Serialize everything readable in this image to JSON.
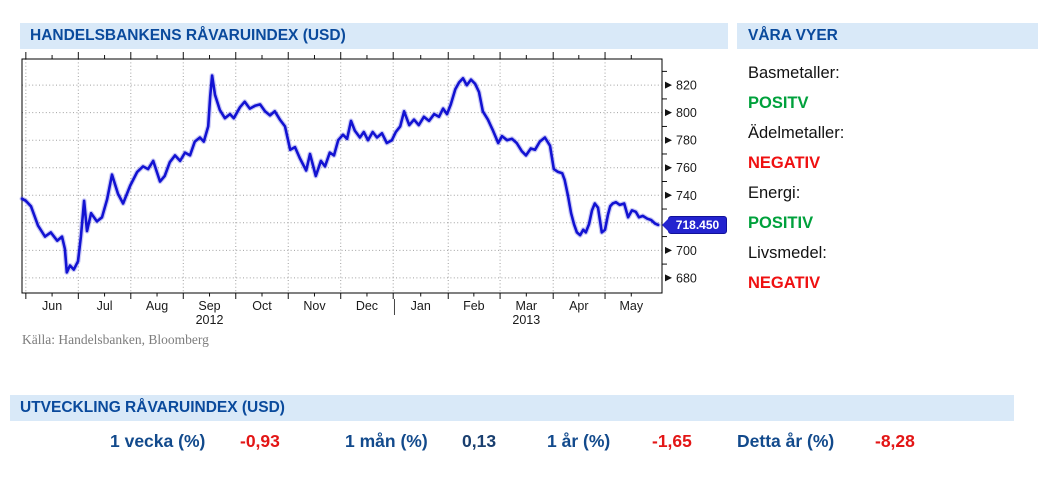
{
  "header": {
    "title": "HANDELSBANKENS RÅVARUINDEX (USD)"
  },
  "views_panel": {
    "title": "VÅRA VYER",
    "items": [
      {
        "label": "Basmetaller:",
        "status": "POSITV",
        "sentiment": "positive"
      },
      {
        "label": "Ädelmetaller:",
        "status": "NEGATIV",
        "sentiment": "negative"
      },
      {
        "label": "Energi:",
        "status": "POSITIV",
        "sentiment": "positive"
      },
      {
        "label": "Livsmedel:",
        "status": "NEGATIV",
        "sentiment": "negative"
      }
    ]
  },
  "source_note": "Källa: Handelsbanken, Bloomberg",
  "performance": {
    "title": "UTVECKLING RÅVARUINDEX (USD)",
    "stats": [
      {
        "label": "1 vecka (%)",
        "value": "-0,93",
        "sentiment": "negative"
      },
      {
        "label": "1 mån (%)",
        "value": "0,13",
        "sentiment": "positive"
      },
      {
        "label": "1 år (%)",
        "value": "-1,65",
        "sentiment": "negative"
      },
      {
        "label": "Detta år (%)",
        "value": "-8,28",
        "sentiment": "negative"
      }
    ]
  },
  "colors": {
    "header_text": "#0a4a9c",
    "bar_bg": "#d9e9f8",
    "line_blue": "#1212d2",
    "positive_green": "#00a13c",
    "negative_red": "#ef1011",
    "badge_bg": "#2323cf",
    "grid_gray": "#a0a0a0"
  },
  "chart_data": {
    "type": "line",
    "title": "HANDELSBANKENS RÅVARUINDEX (USD)",
    "last_price": 718.45,
    "last_price_label": "718.450",
    "y_axis": {
      "ticks": [
        680,
        700,
        720,
        740,
        760,
        780,
        800,
        820
      ],
      "minor_ticks": [
        690,
        710,
        730,
        750,
        770,
        790,
        810,
        830
      ],
      "hidden_label": 720,
      "display_range": [
        669,
        839
      ],
      "grid": true
    },
    "x_axis": {
      "months": [
        {
          "label": "Jun",
          "start": 0.006,
          "center": 0.047
        },
        {
          "label": "Jul",
          "start": 0.088,
          "center": 0.129
        },
        {
          "label": "Aug",
          "start": 0.17,
          "center": 0.211
        },
        {
          "label": "Sep",
          "start": 0.252,
          "center": 0.293
        },
        {
          "label": "Oct",
          "start": 0.334,
          "center": 0.375
        },
        {
          "label": "Nov",
          "start": 0.416,
          "center": 0.457
        },
        {
          "label": "Dec",
          "start": 0.498,
          "center": 0.539
        },
        {
          "label": "Jan",
          "start": 0.58,
          "center": 0.623
        },
        {
          "label": "Feb",
          "start": 0.666,
          "center": 0.706
        },
        {
          "label": "Mar",
          "start": 0.747,
          "center": 0.788
        },
        {
          "label": "Apr",
          "start": 0.83,
          "center": 0.87
        },
        {
          "label": "May",
          "start": 0.911,
          "center": 0.952
        }
      ],
      "years": [
        {
          "label": "2012",
          "center": 0.293
        },
        {
          "label": "2013",
          "center": 0.788
        }
      ],
      "year_divider": 0.582,
      "span": "Jun 2012 - May 2013"
    },
    "series": [
      {
        "name": "Handelsbankens råvaruindex (USD)",
        "points": [
          [
            0.0,
            737.5
          ],
          [
            0.006,
            736
          ],
          [
            0.014,
            732
          ],
          [
            0.025,
            718
          ],
          [
            0.036,
            710
          ],
          [
            0.045,
            713
          ],
          [
            0.055,
            707
          ],
          [
            0.0625,
            710
          ],
          [
            0.067,
            701
          ],
          [
            0.07,
            684
          ],
          [
            0.075,
            689
          ],
          [
            0.081,
            686
          ],
          [
            0.0875,
            692
          ],
          [
            0.092,
            710
          ],
          [
            0.097,
            736
          ],
          [
            0.1016,
            714
          ],
          [
            0.108,
            727
          ],
          [
            0.117,
            721
          ],
          [
            0.125,
            724
          ],
          [
            0.133,
            737
          ],
          [
            0.1406,
            755
          ],
          [
            0.15,
            741
          ],
          [
            0.158,
            734
          ],
          [
            0.169,
            747
          ],
          [
            0.18,
            757
          ],
          [
            0.189,
            761
          ],
          [
            0.197,
            759
          ],
          [
            0.205,
            765
          ],
          [
            0.2156,
            750
          ],
          [
            0.223,
            754
          ],
          [
            0.231,
            764
          ],
          [
            0.239,
            769
          ],
          [
            0.247,
            765
          ],
          [
            0.2547,
            771
          ],
          [
            0.2625,
            769
          ],
          [
            0.27,
            779
          ],
          [
            0.278,
            782
          ],
          [
            0.284,
            779
          ],
          [
            0.291,
            790
          ],
          [
            0.294,
            812
          ],
          [
            0.297,
            827
          ],
          [
            0.3016,
            813
          ],
          [
            0.309,
            802
          ],
          [
            0.317,
            796
          ],
          [
            0.325,
            799
          ],
          [
            0.331,
            796
          ],
          [
            0.3406,
            804
          ],
          [
            0.348,
            808
          ],
          [
            0.356,
            803
          ],
          [
            0.364,
            805
          ],
          [
            0.372,
            806
          ],
          [
            0.3797,
            801
          ],
          [
            0.3875,
            798
          ],
          [
            0.395,
            801
          ],
          [
            0.403,
            795
          ],
          [
            0.411,
            790
          ],
          [
            0.419,
            773
          ],
          [
            0.4266,
            775
          ],
          [
            0.434,
            767
          ],
          [
            0.444,
            758
          ],
          [
            0.45,
            770
          ],
          [
            0.459,
            754
          ],
          [
            0.467,
            765
          ],
          [
            0.4734,
            761
          ],
          [
            0.481,
            771
          ],
          [
            0.4875,
            769
          ],
          [
            0.494,
            780
          ],
          [
            0.5016,
            784
          ],
          [
            0.508,
            781
          ],
          [
            0.514,
            794
          ],
          [
            0.52,
            787
          ],
          [
            0.528,
            782
          ],
          [
            0.534,
            786
          ],
          [
            0.5406,
            780
          ],
          [
            0.548,
            786
          ],
          [
            0.5547,
            782
          ],
          [
            0.5625,
            785
          ],
          [
            0.57,
            778
          ],
          [
            0.578,
            780
          ],
          [
            0.584,
            786
          ],
          [
            0.591,
            790
          ],
          [
            0.597,
            801
          ],
          [
            0.605,
            791
          ],
          [
            0.6125,
            795
          ],
          [
            0.62,
            791
          ],
          [
            0.628,
            797
          ],
          [
            0.636,
            794
          ],
          [
            0.644,
            799
          ],
          [
            0.6516,
            797
          ],
          [
            0.658,
            803
          ],
          [
            0.664,
            799
          ],
          [
            0.67,
            806
          ],
          [
            0.677,
            817
          ],
          [
            0.683,
            822
          ],
          [
            0.689,
            825
          ],
          [
            0.695,
            820
          ],
          [
            0.7016,
            824
          ],
          [
            0.708,
            821
          ],
          [
            0.714,
            815
          ],
          [
            0.72,
            801
          ],
          [
            0.728,
            795
          ],
          [
            0.736,
            787
          ],
          [
            0.744,
            778
          ],
          [
            0.75,
            783
          ],
          [
            0.758,
            780
          ],
          [
            0.7656,
            781
          ],
          [
            0.773,
            778
          ],
          [
            0.781,
            772
          ],
          [
            0.7875,
            769
          ],
          [
            0.795,
            774
          ],
          [
            0.8016,
            773
          ],
          [
            0.809,
            779
          ],
          [
            0.817,
            782
          ],
          [
            0.825,
            776
          ],
          [
            0.831,
            759
          ],
          [
            0.8375,
            757
          ],
          [
            0.844,
            756
          ],
          [
            0.848,
            751
          ],
          [
            0.853,
            740
          ],
          [
            0.858,
            727
          ],
          [
            0.8625,
            719
          ],
          [
            0.867,
            713
          ],
          [
            0.872,
            711
          ],
          [
            0.877,
            715
          ],
          [
            0.881,
            713
          ],
          [
            0.886,
            719
          ],
          [
            0.8906,
            729
          ],
          [
            0.895,
            734
          ],
          [
            0.9,
            731
          ],
          [
            0.903,
            722
          ],
          [
            0.906,
            713
          ],
          [
            0.911,
            715
          ],
          [
            0.9156,
            726
          ],
          [
            0.919,
            732
          ],
          [
            0.923,
            734
          ],
          [
            0.928,
            735
          ],
          [
            0.934,
            733
          ],
          [
            0.941,
            734
          ],
          [
            0.947,
            724
          ],
          [
            0.953,
            729
          ],
          [
            0.959,
            728
          ],
          [
            0.964,
            724
          ],
          [
            0.97,
            725
          ],
          [
            0.977,
            723
          ],
          [
            0.983,
            722
          ],
          [
            0.989,
            719.5
          ],
          [
            0.994,
            718.45
          ]
        ]
      }
    ]
  }
}
